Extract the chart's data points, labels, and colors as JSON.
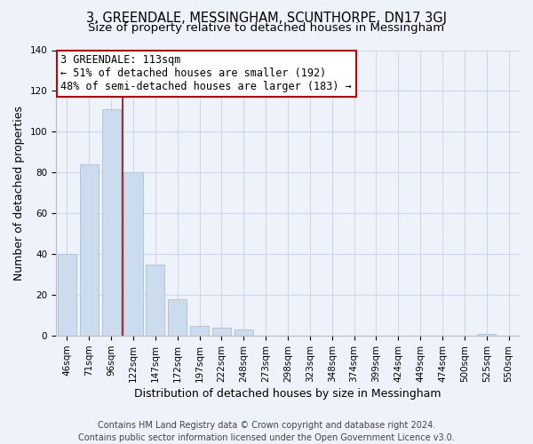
{
  "title": "3, GREENDALE, MESSINGHAM, SCUNTHORPE, DN17 3GJ",
  "subtitle": "Size of property relative to detached houses in Messingham",
  "xlabel": "Distribution of detached houses by size in Messingham",
  "ylabel": "Number of detached properties",
  "bar_labels": [
    "46sqm",
    "71sqm",
    "96sqm",
    "122sqm",
    "147sqm",
    "172sqm",
    "197sqm",
    "222sqm",
    "248sqm",
    "273sqm",
    "298sqm",
    "323sqm",
    "348sqm",
    "374sqm",
    "399sqm",
    "424sqm",
    "449sqm",
    "474sqm",
    "500sqm",
    "525sqm",
    "550sqm"
  ],
  "bar_values": [
    40,
    84,
    111,
    80,
    35,
    18,
    5,
    4,
    3,
    0,
    0,
    0,
    0,
    0,
    0,
    0,
    0,
    0,
    0,
    1,
    0
  ],
  "bar_color": "#ccdcef",
  "bar_edge_color": "#a8c0d8",
  "highlight_line_color": "#aa0000",
  "highlight_bar_index": 2,
  "annotation_line1": "3 GREENDALE: 113sqm",
  "annotation_line2": "← 51% of detached houses are smaller (192)",
  "annotation_line3": "48% of semi-detached houses are larger (183) →",
  "annotation_box_edge_color": "#cc0000",
  "annotation_box_face_color": "#ffffff",
  "ylim": [
    0,
    140
  ],
  "yticks": [
    0,
    20,
    40,
    60,
    80,
    100,
    120,
    140
  ],
  "footnote": "Contains HM Land Registry data © Crown copyright and database right 2024.\nContains public sector information licensed under the Open Government Licence v3.0.",
  "bg_color": "#eef2fb",
  "plot_bg_color": "#eef2fb",
  "grid_color": "#d0d8e8",
  "title_fontsize": 10.5,
  "subtitle_fontsize": 9.5,
  "axis_label_fontsize": 9,
  "tick_fontsize": 7.5,
  "annotation_fontsize": 8.5,
  "footnote_fontsize": 7
}
